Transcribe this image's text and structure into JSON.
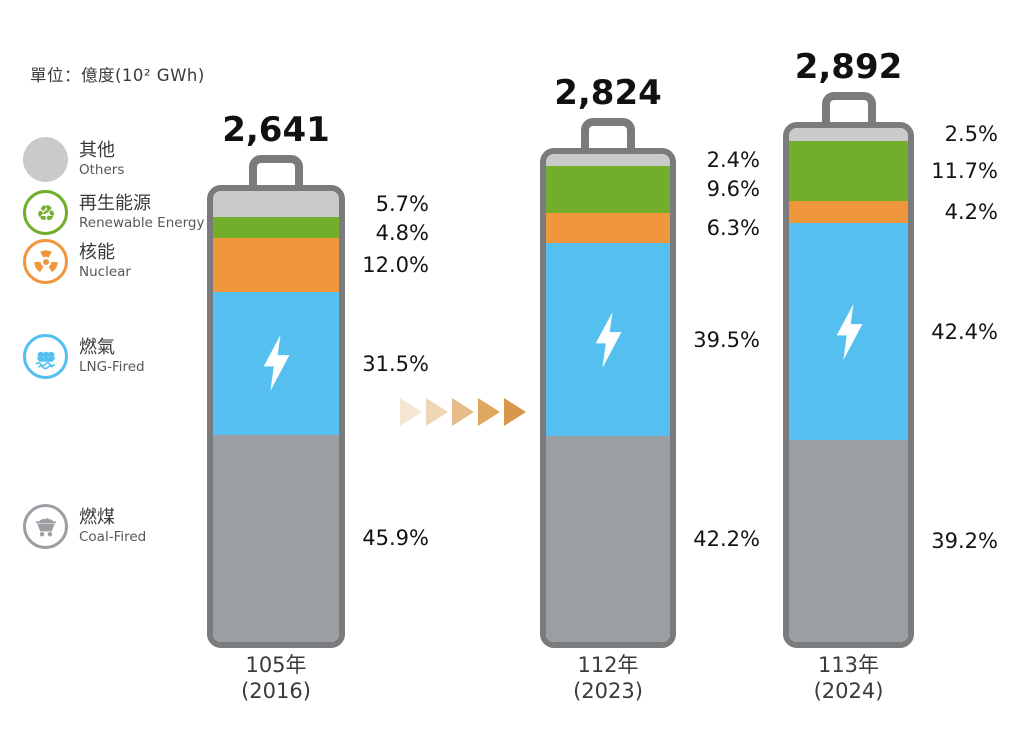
{
  "unit_label": "單位：億度(10² GWh)",
  "legend": {
    "items": [
      {
        "id": "others",
        "zh": "其他",
        "en": "Others",
        "color": "#c9caca",
        "icon": "others-circle-icon",
        "icon_style": "filled"
      },
      {
        "id": "renewable",
        "zh": "再生能源",
        "en": "Renewable Energy",
        "color": "#72ad2b",
        "icon": "recycle-icon",
        "icon_style": "outlined"
      },
      {
        "id": "nuclear",
        "zh": "核能",
        "en": "Nuclear",
        "color": "#f0973e",
        "icon": "radiation-icon",
        "icon_style": "outlined"
      },
      {
        "id": "lng",
        "zh": "燃氣",
        "en": "LNG-Fired",
        "color": "#55c0ef",
        "icon": "lng-ship-icon",
        "icon_style": "outlined"
      },
      {
        "id": "coal",
        "zh": "燃煤",
        "en": "Coal-Fired",
        "color": "#9b9fa4",
        "icon": "coal-cart-icon",
        "icon_style": "outlined"
      }
    ]
  },
  "chart_data": {
    "type": "bar",
    "variant": "battery-stacked-percentage",
    "stacked": true,
    "legend_position": "left",
    "grid": false,
    "unit_label": "單位：億度(10² GWh)",
    "value_suffix": "%",
    "battery_outline_color": "#7a7b7d",
    "bolt_color": "#ffffff",
    "categories": [
      {
        "roc_year": "105年",
        "year_label": "(2016)",
        "total": 2641,
        "total_display": "2,641"
      },
      {
        "roc_year": "112年",
        "year_label": "(2023)",
        "total": 2824,
        "total_display": "2,824"
      },
      {
        "roc_year": "113年",
        "year_label": "(2024)",
        "total": 2892,
        "total_display": "2,892"
      }
    ],
    "series": [
      {
        "id": "others",
        "name_zh": "其他",
        "name_en": "Others",
        "color": "#c9caca",
        "percentages": [
          5.7,
          2.4,
          2.5
        ]
      },
      {
        "id": "renewable",
        "name_zh": "再生能源",
        "name_en": "Renewable Energy",
        "color": "#72ad2b",
        "percentages": [
          4.8,
          9.6,
          11.7
        ]
      },
      {
        "id": "nuclear",
        "name_zh": "核能",
        "name_en": "Nuclear",
        "color": "#f0973e",
        "percentages": [
          12.0,
          6.3,
          4.2
        ]
      },
      {
        "id": "lng",
        "name_zh": "燃氣",
        "name_en": "LNG-Fired",
        "color": "#55c0ef",
        "percentages": [
          31.5,
          39.5,
          42.4
        ],
        "has_bolt_icon": true
      },
      {
        "id": "coal",
        "name_zh": "燃煤",
        "name_en": "Coal-Fired",
        "color": "#9b9fa4",
        "percentages": [
          45.9,
          42.2,
          39.2
        ]
      }
    ]
  },
  "trend_arrow": {
    "direction": "right",
    "count": 5,
    "colors": [
      "#f5e6d2",
      "#efd6b4",
      "#e6bd8a",
      "#dda75f",
      "#d6984b"
    ]
  }
}
